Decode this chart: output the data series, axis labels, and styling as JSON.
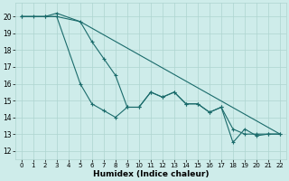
{
  "xlabel": "Humidex (Indice chaleur)",
  "background_color": "#ceecea",
  "grid_color": "#aed4d0",
  "line_color": "#1a6b6b",
  "xlim": [
    -0.5,
    22.5
  ],
  "ylim": [
    11.5,
    20.8
  ],
  "xticks": [
    0,
    1,
    2,
    3,
    4,
    5,
    6,
    7,
    8,
    9,
    10,
    11,
    12,
    13,
    14,
    15,
    16,
    17,
    18,
    19,
    20,
    21,
    22
  ],
  "yticks": [
    12,
    13,
    14,
    15,
    16,
    17,
    18,
    19,
    20
  ],
  "line1_x": [
    0,
    1,
    2,
    3,
    5,
    6,
    7,
    8,
    9,
    10,
    11,
    12,
    13,
    14,
    15,
    16,
    17,
    18,
    19,
    20,
    21,
    22
  ],
  "line1_y": [
    20,
    20,
    20,
    20,
    16,
    14.8,
    14.4,
    14.0,
    14.6,
    14.6,
    15.5,
    15.2,
    15.5,
    14.8,
    14.8,
    14.3,
    14.6,
    13.3,
    13.0,
    13.0,
    13.0,
    13.0
  ],
  "line2_x": [
    0,
    2,
    3,
    5,
    6,
    7,
    8,
    9,
    10,
    11,
    12,
    13,
    14,
    15,
    16,
    17,
    18,
    19,
    20,
    21,
    22
  ],
  "line2_y": [
    20,
    20,
    20.2,
    19.7,
    18.5,
    17.5,
    16.5,
    14.6,
    14.6,
    15.5,
    15.2,
    15.5,
    14.8,
    14.8,
    14.3,
    14.6,
    12.5,
    13.3,
    12.9,
    13.0,
    13.0
  ],
  "line3_x": [
    0,
    1,
    2,
    3,
    5,
    22
  ],
  "line3_y": [
    20,
    20,
    20,
    20,
    19.7,
    13.0
  ]
}
